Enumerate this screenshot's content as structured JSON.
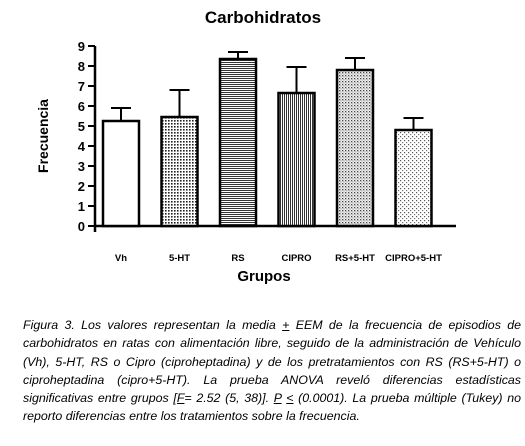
{
  "chart_data": {
    "type": "bar",
    "title": "Carbohidratos",
    "xlabel": "Grupos",
    "ylabel": "Frecuencia",
    "ylim": [
      0,
      9
    ],
    "yticks": [
      0,
      1,
      2,
      3,
      4,
      5,
      6,
      7,
      8,
      9
    ],
    "categories": [
      "Vh",
      "5-HT",
      "RS",
      "CIPRO",
      "RS+5-HT",
      "CIPRO+5-HT"
    ],
    "values": [
      5.25,
      5.45,
      8.35,
      6.65,
      7.8,
      4.8
    ],
    "errors": [
      0.65,
      1.35,
      0.35,
      1.3,
      0.6,
      0.6
    ],
    "patterns": [
      "white",
      "dots-dense",
      "hlines",
      "vlines",
      "stipple-dense",
      "stipple-light"
    ]
  },
  "caption": {
    "p1": "Figura 3. Los valores representan la media ",
    "pm": "+",
    "p2": " EEM de la frecuencia de episodios de carbohidratos en ratas con alimentación libre, seguido de la administración de Vehículo (Vh), 5-HT, RS o Cipro (ciproheptadina) y de los pretratamientos con RS (RS+5-HT) o ciproheptadina (cipro+5-HT). La prueba ANOVA reveló diferencias estadísticas significativas entre grupos ",
    "f": "[F",
    "p3": "= 2.52 (5, 38)]. ",
    "p": "P",
    "p4": " ",
    "le": "<",
    "p5": " (0.0001). La prueba múltiple (Tukey) no reporto diferencias entre los tratamientos sobre la frecuencia."
  }
}
